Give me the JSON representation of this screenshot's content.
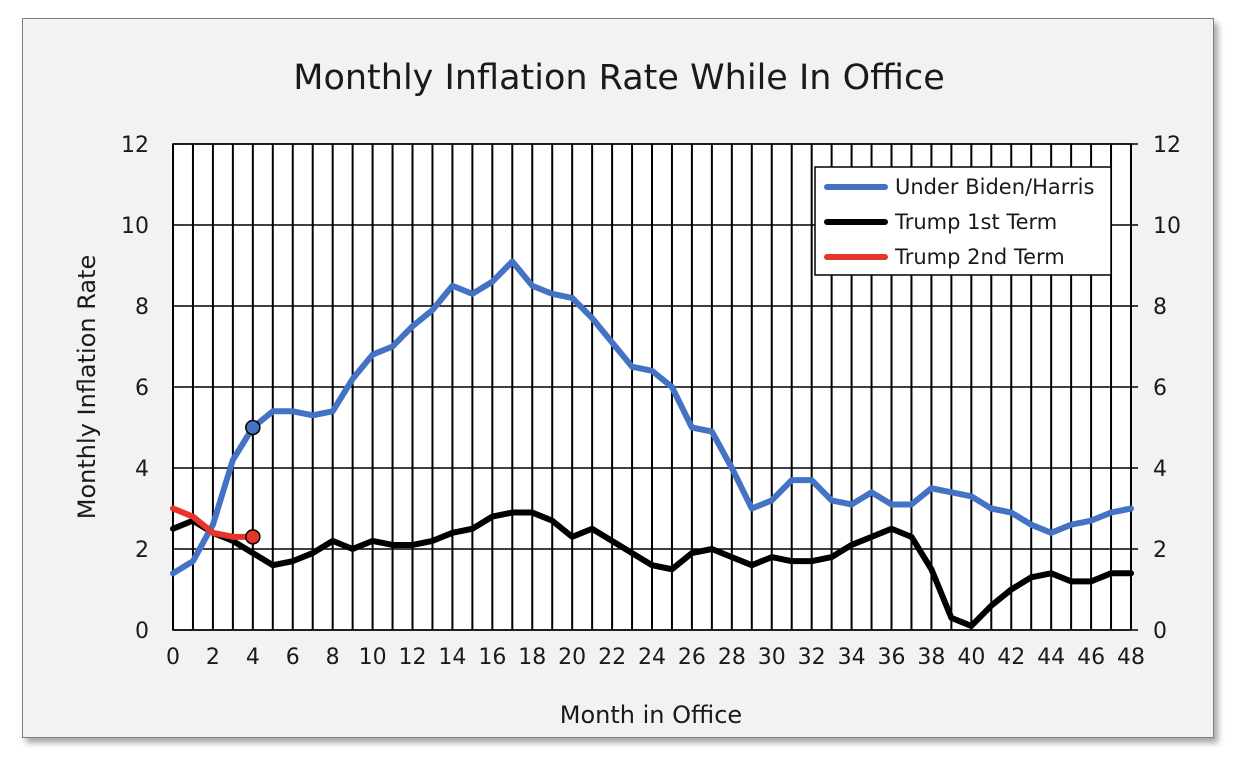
{
  "chart_data": {
    "type": "line",
    "title": "Monthly Inflation Rate While In Office",
    "xlabel": "Month in Office",
    "ylabel": "Monthly Inflation Rate",
    "xlim": [
      0,
      48
    ],
    "ylim": [
      0,
      12
    ],
    "x_ticks": [
      "0",
      "2",
      "4",
      "6",
      "8",
      "10",
      "12",
      "14",
      "16",
      "18",
      "20",
      "22",
      "24",
      "26",
      "28",
      "30",
      "32",
      "34",
      "36",
      "38",
      "40",
      "42",
      "44",
      "46",
      "48"
    ],
    "y_ticks": [
      "0",
      "2",
      "4",
      "6",
      "8",
      "10",
      "12"
    ],
    "y_ticks_right": [
      "0",
      "2",
      "4",
      "6",
      "8",
      "10",
      "12"
    ],
    "grid": true,
    "legend_position": "top-right",
    "series": [
      {
        "name": "Under Biden/Harris",
        "color": "#4472c4",
        "x": [
          0,
          1,
          2,
          3,
          4,
          5,
          6,
          7,
          8,
          9,
          10,
          11,
          12,
          13,
          14,
          15,
          16,
          17,
          18,
          19,
          20,
          21,
          22,
          23,
          24,
          25,
          26,
          27,
          28,
          29,
          30,
          31,
          32,
          33,
          34,
          35,
          36,
          37,
          38,
          39,
          40,
          41,
          42,
          43,
          44,
          45,
          46,
          47,
          48
        ],
        "values": [
          1.4,
          1.7,
          2.6,
          4.2,
          5.0,
          5.4,
          5.4,
          5.3,
          5.4,
          6.2,
          6.8,
          7.0,
          7.5,
          7.9,
          8.5,
          8.3,
          8.6,
          9.1,
          8.5,
          8.3,
          8.2,
          7.7,
          7.1,
          6.5,
          6.4,
          6.0,
          5.0,
          4.9,
          4.0,
          3.0,
          3.2,
          3.7,
          3.7,
          3.2,
          3.1,
          3.4,
          3.1,
          3.1,
          3.5,
          3.4,
          3.3,
          3.0,
          2.9,
          2.6,
          2.4,
          2.6,
          2.7,
          2.9,
          3.0
        ],
        "marker_at": {
          "x": 4,
          "y": 5.0
        }
      },
      {
        "name": "Trump 1st Term",
        "color": "#000000",
        "x": [
          0,
          1,
          2,
          3,
          4,
          5,
          6,
          7,
          8,
          9,
          10,
          11,
          12,
          13,
          14,
          15,
          16,
          17,
          18,
          19,
          20,
          21,
          22,
          23,
          24,
          25,
          26,
          27,
          28,
          29,
          30,
          31,
          32,
          33,
          34,
          35,
          36,
          37,
          38,
          39,
          40,
          41,
          42,
          43,
          44,
          45,
          46,
          47,
          48
        ],
        "values": [
          2.5,
          2.7,
          2.4,
          2.2,
          1.9,
          1.6,
          1.7,
          1.9,
          2.2,
          2.0,
          2.2,
          2.1,
          2.1,
          2.2,
          2.4,
          2.5,
          2.8,
          2.9,
          2.9,
          2.7,
          2.3,
          2.5,
          2.2,
          1.9,
          1.6,
          1.5,
          1.9,
          2.0,
          1.8,
          1.6,
          1.8,
          1.7,
          1.7,
          1.8,
          2.1,
          2.3,
          2.5,
          2.3,
          1.5,
          0.3,
          0.1,
          0.6,
          1.0,
          1.3,
          1.4,
          1.2,
          1.2,
          1.4,
          1.4
        ]
      },
      {
        "name": "Trump 2nd Term",
        "color": "#e8352b",
        "x": [
          0,
          1,
          2,
          3,
          4
        ],
        "values": [
          3.0,
          2.8,
          2.4,
          2.3,
          2.3
        ],
        "marker_at": {
          "x": 4,
          "y": 2.3
        }
      }
    ]
  }
}
